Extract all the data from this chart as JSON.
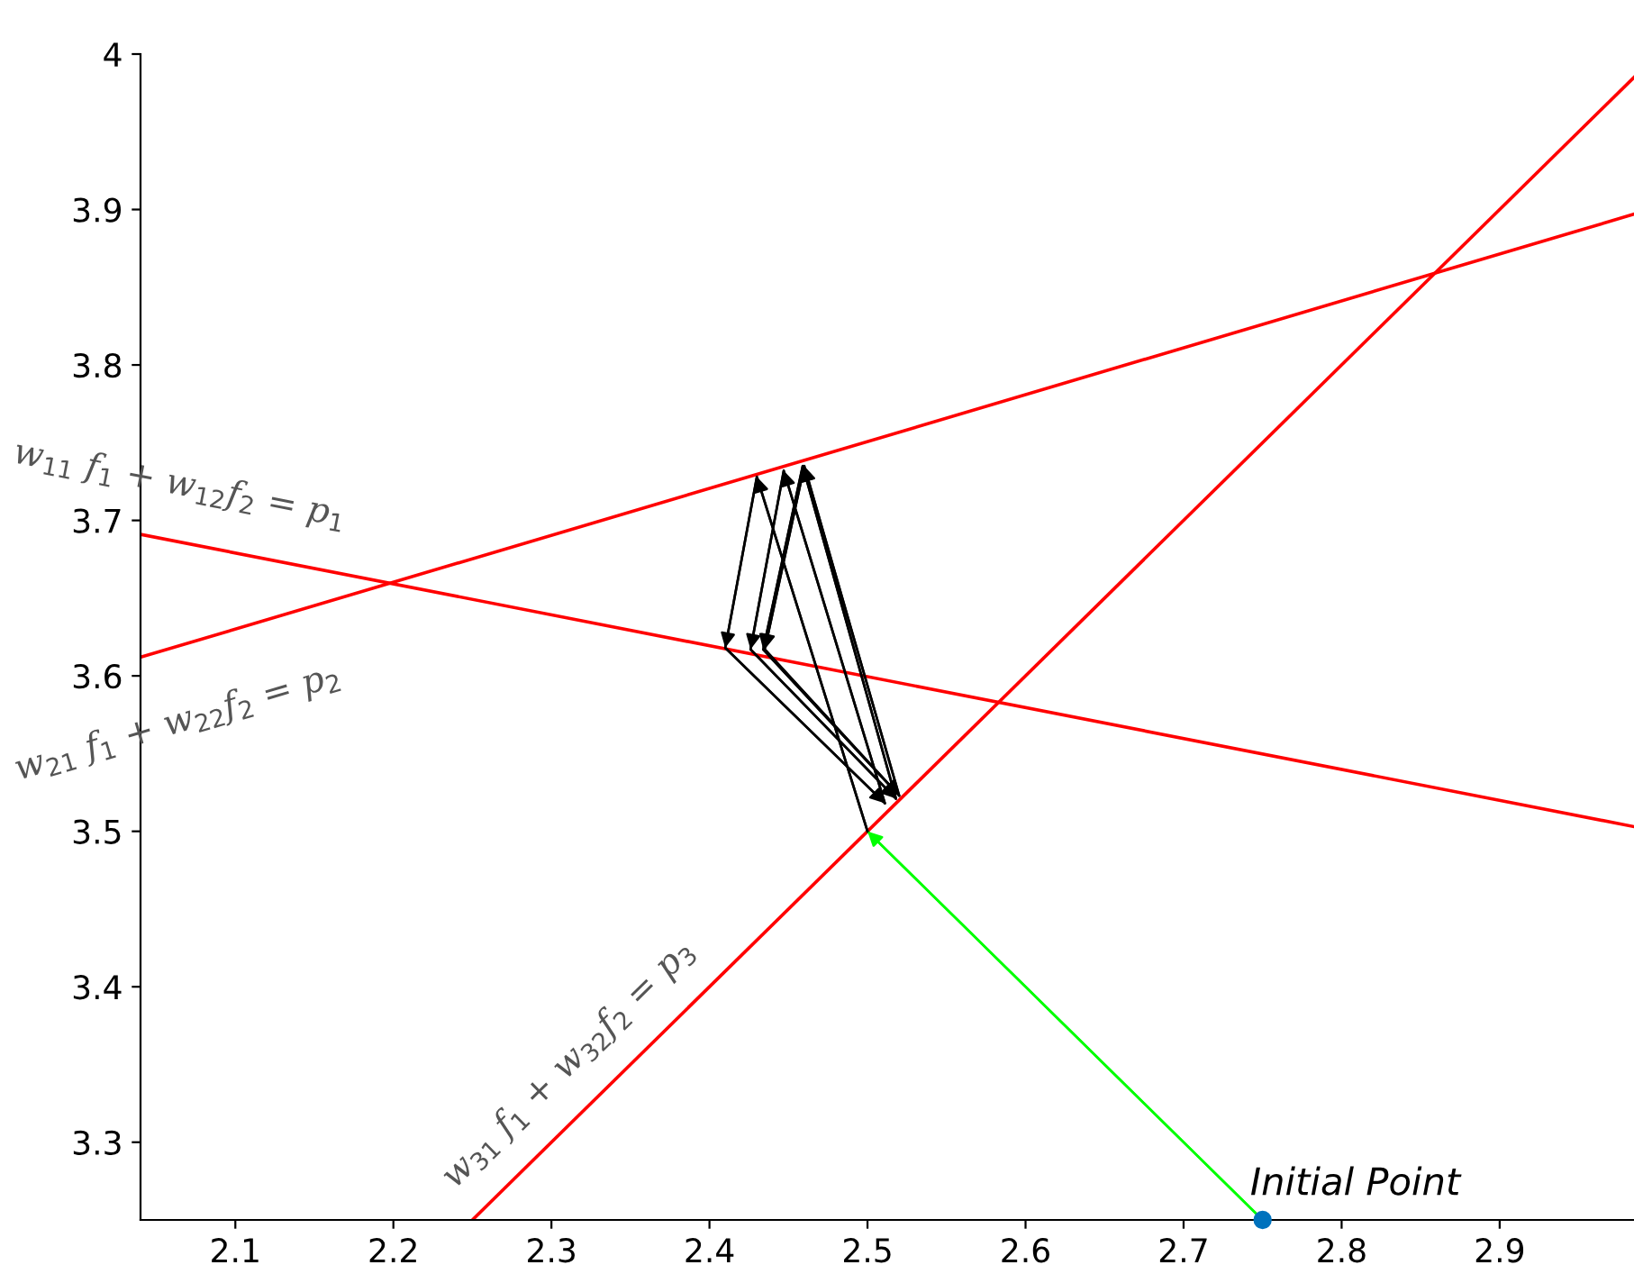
{
  "chart_data": {
    "type": "line",
    "xlim": [
      2.04,
      2.985
    ],
    "ylim": [
      3.25,
      4.0
    ],
    "xticks": [
      2.1,
      2.2,
      2.3,
      2.4,
      2.5,
      2.6,
      2.7,
      2.8,
      2.9
    ],
    "yticks": [
      3.3,
      3.4,
      3.5,
      3.6,
      3.7,
      3.8,
      3.9,
      4
    ],
    "grid": false,
    "legend": false,
    "series": [
      {
        "name": "w$_{11}$ f$_{1}$ + w$_{12}$f$_{2}$ = p$_{1}$",
        "color": "#ff0000",
        "x": [
          2.04,
          2.985
        ],
        "values": [
          3.691,
          3.503
        ]
      },
      {
        "name": "w$_{21}$ f$_{1}$ + w$_{22}$f$_{2}$ = p$_{2}$",
        "color": "#ff0000",
        "x": [
          2.04,
          2.985
        ],
        "values": [
          3.612,
          3.897
        ]
      },
      {
        "name": "w$_{31}$ f$_{1}$ + w$_{32}$f$_{2}$ = p$_{3}$",
        "color": "#ff0000",
        "x": [
          2.25,
          2.985
        ],
        "values": [
          3.25,
          3.985
        ]
      },
      {
        "color": "#00ff00",
        "x": [
          2.75,
          2.5
        ],
        "values": [
          3.25,
          3.5
        ]
      },
      {
        "color": "#000000",
        "x": [
          2.5,
          2.43,
          2.41,
          2.511,
          2.447,
          2.426,
          2.518,
          2.459,
          2.434,
          2.52,
          2.46,
          2.435,
          2.52
        ],
        "values": [
          3.5,
          3.728,
          3.618,
          3.518,
          3.732,
          3.617,
          3.521,
          3.735,
          3.617,
          3.523,
          3.735,
          3.617,
          3.523
        ]
      },
      {
        "type": "scatter",
        "color": "#0072bd",
        "x": [
          2.75
        ],
        "values": [
          3.25
        ],
        "marker": "circle"
      }
    ],
    "annotations": [
      {
        "text": "Initial Point",
        "x": 2.75,
        "y": 3.25
      }
    ]
  }
}
